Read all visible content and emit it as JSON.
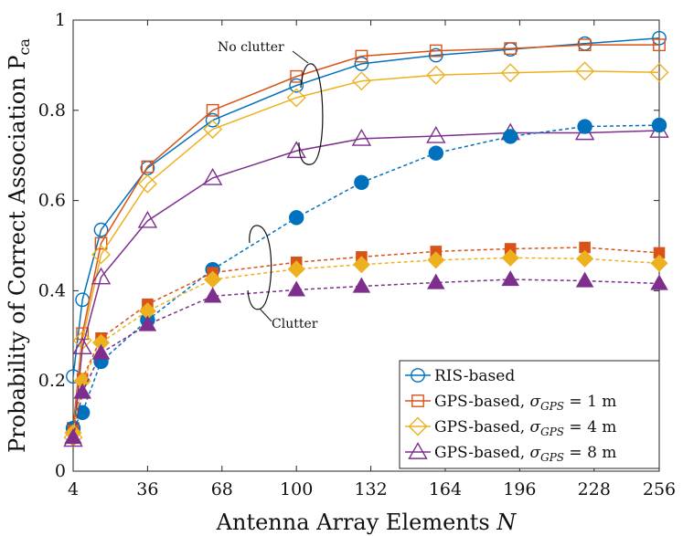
{
  "chart_data": {
    "type": "line",
    "title": "",
    "xlabel": "Antenna Array Elements N",
    "xlabel_text": "Antenna Array Elements",
    "xlabel_symbol": "N",
    "ylabel": "Probability of Correct Association P_ca",
    "ylabel_text": "Probability of Correct Association P",
    "ylabel_sub": "ca",
    "xlim": [
      4,
      256
    ],
    "ylim": [
      0,
      1
    ],
    "xticks": [
      4,
      36,
      68,
      100,
      132,
      164,
      196,
      228,
      256
    ],
    "yticks": [
      0,
      0.2,
      0.4,
      0.6,
      0.8,
      1
    ],
    "ytick_labels": [
      "0",
      "0.2",
      "0.4",
      "0.6",
      "0.8",
      "1"
    ],
    "grid": false,
    "legend_position": "bottom-right",
    "annotations": [
      {
        "text": "No clutter"
      },
      {
        "text": "Clutter"
      }
    ],
    "series": [
      {
        "name": "RIS-based",
        "scenario": "No clutter",
        "color": "#0072BD",
        "marker": "circle",
        "filled": false,
        "dashed": false,
        "x": [
          4,
          8,
          16,
          36,
          64,
          100,
          128,
          160,
          192,
          224,
          256
        ],
        "y": [
          0.21,
          0.38,
          0.535,
          0.672,
          0.778,
          0.855,
          0.903,
          0.922,
          0.935,
          0.948,
          0.96
        ]
      },
      {
        "name": "GPS-based, σ_GPS = 1 m",
        "scenario": "No clutter",
        "color": "#D95319",
        "marker": "square",
        "filled": false,
        "dashed": false,
        "x": [
          4,
          8,
          16,
          36,
          64,
          100,
          128,
          160,
          192,
          224,
          256
        ],
        "y": [
          0.095,
          0.305,
          0.505,
          0.675,
          0.8,
          0.875,
          0.92,
          0.932,
          0.937,
          0.945,
          0.945
        ]
      },
      {
        "name": "GPS-based, σ_GPS = 4 m",
        "scenario": "No clutter",
        "color": "#EDB120",
        "marker": "diamond",
        "filled": false,
        "dashed": false,
        "x": [
          4,
          8,
          16,
          36,
          64,
          100,
          128,
          160,
          192,
          224,
          256
        ],
        "y": [
          0.075,
          0.29,
          0.48,
          0.637,
          0.758,
          0.828,
          0.865,
          0.878,
          0.883,
          0.887,
          0.884
        ]
      },
      {
        "name": "GPS-based, σ_GPS = 8 m",
        "scenario": "No clutter",
        "color": "#7E2F8E",
        "marker": "triangle",
        "filled": false,
        "dashed": false,
        "x": [
          4,
          8,
          16,
          36,
          64,
          100,
          128,
          160,
          192,
          224,
          256
        ],
        "y": [
          0.07,
          0.275,
          0.43,
          0.555,
          0.65,
          0.71,
          0.737,
          0.743,
          0.75,
          0.75,
          0.755
        ]
      },
      {
        "name": "RIS-based (clutter)",
        "scenario": "Clutter",
        "color": "#0072BD",
        "marker": "circle",
        "filled": true,
        "dashed": true,
        "x": [
          4,
          8,
          16,
          36,
          64,
          100,
          128,
          160,
          192,
          224,
          256
        ],
        "y": [
          0.095,
          0.13,
          0.243,
          0.335,
          0.447,
          0.562,
          0.64,
          0.705,
          0.742,
          0.764,
          0.767
        ]
      },
      {
        "name": "GPS-based, σ_GPS = 1 m (clutter)",
        "scenario": "Clutter",
        "color": "#D95319",
        "marker": "square",
        "filled": true,
        "dashed": true,
        "x": [
          4,
          8,
          16,
          36,
          64,
          100,
          128,
          160,
          192,
          224,
          256
        ],
        "y": [
          0.09,
          0.205,
          0.295,
          0.37,
          0.44,
          0.463,
          0.475,
          0.487,
          0.493,
          0.496,
          0.484
        ]
      },
      {
        "name": "GPS-based, σ_GPS = 4 m (clutter)",
        "scenario": "Clutter",
        "color": "#EDB120",
        "marker": "diamond",
        "filled": true,
        "dashed": true,
        "x": [
          4,
          8,
          16,
          36,
          64,
          100,
          128,
          160,
          192,
          224,
          256
        ],
        "y": [
          0.085,
          0.2,
          0.285,
          0.355,
          0.425,
          0.448,
          0.458,
          0.468,
          0.473,
          0.471,
          0.461
        ]
      },
      {
        "name": "GPS-based, σ_GPS = 8 m (clutter)",
        "scenario": "Clutter",
        "color": "#7E2F8E",
        "marker": "triangle",
        "filled": true,
        "dashed": true,
        "x": [
          4,
          8,
          16,
          36,
          64,
          100,
          128,
          160,
          192,
          224,
          256
        ],
        "y": [
          0.075,
          0.175,
          0.262,
          0.325,
          0.388,
          0.402,
          0.41,
          0.418,
          0.425,
          0.422,
          0.416
        ]
      }
    ],
    "legend": [
      {
        "label": "RIS-based",
        "prefix": "RIS-based",
        "sigma": "",
        "unit": "",
        "series": 0
      },
      {
        "label": "GPS-based, σ_GPS = 1 m",
        "prefix": "GPS-based, ",
        "sigma": "= 1 m",
        "unit": "",
        "series": 1
      },
      {
        "label": "GPS-based, σ_GPS = 4 m",
        "prefix": "GPS-based, ",
        "sigma": "= 4 m",
        "unit": "",
        "series": 2
      },
      {
        "label": "GPS-based, σ_GPS = 8 m",
        "prefix": "GPS-based, ",
        "sigma": "= 8 m",
        "unit": "",
        "series": 3
      }
    ]
  }
}
